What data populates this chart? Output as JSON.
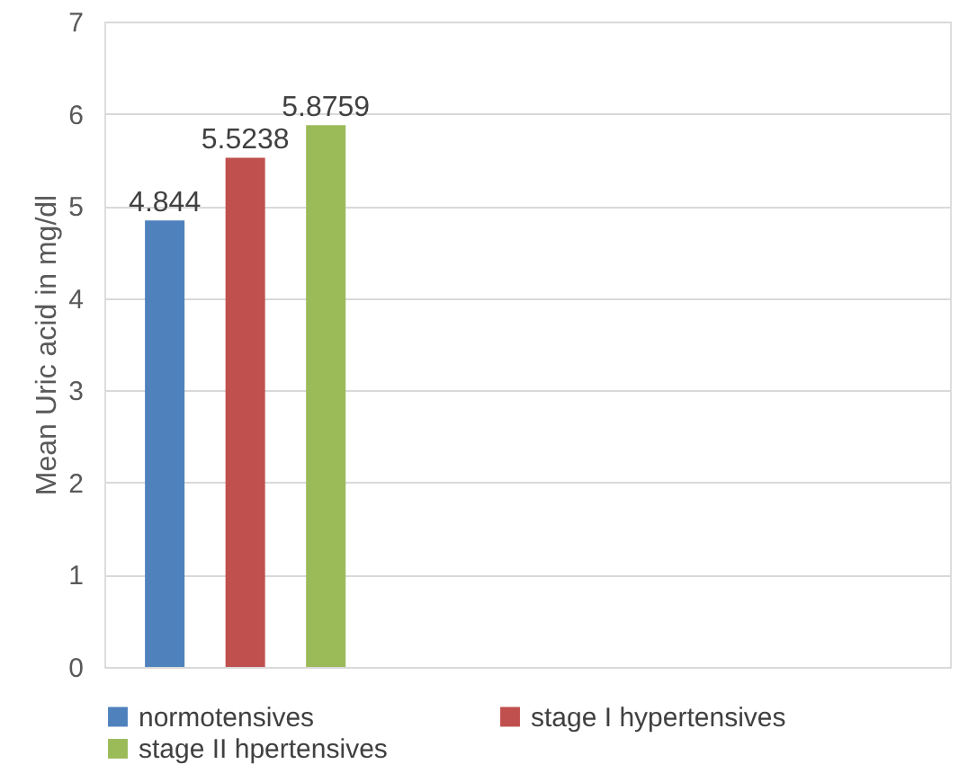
{
  "chart_data": {
    "type": "bar",
    "ylabel": "Mean Uric acid in mg/dl",
    "categories": [
      null,
      null,
      null
    ],
    "series": [
      {
        "name": "normotensives",
        "color": "#4f81bd",
        "values": [
          4.844,
          null,
          null
        ]
      },
      {
        "name": "stage I hypertensives",
        "color": "#c0504d",
        "values": [
          5.5238,
          null,
          null
        ]
      },
      {
        "name": "stage II hpertensives",
        "color": "#9bbb59",
        "values": [
          5.8759,
          null,
          null
        ]
      }
    ],
    "ylim": [
      0,
      7
    ],
    "yticks": [
      0,
      1,
      2,
      3,
      4,
      5,
      6,
      7
    ],
    "grid": "y",
    "legend": "bottom",
    "data_labels": true
  }
}
